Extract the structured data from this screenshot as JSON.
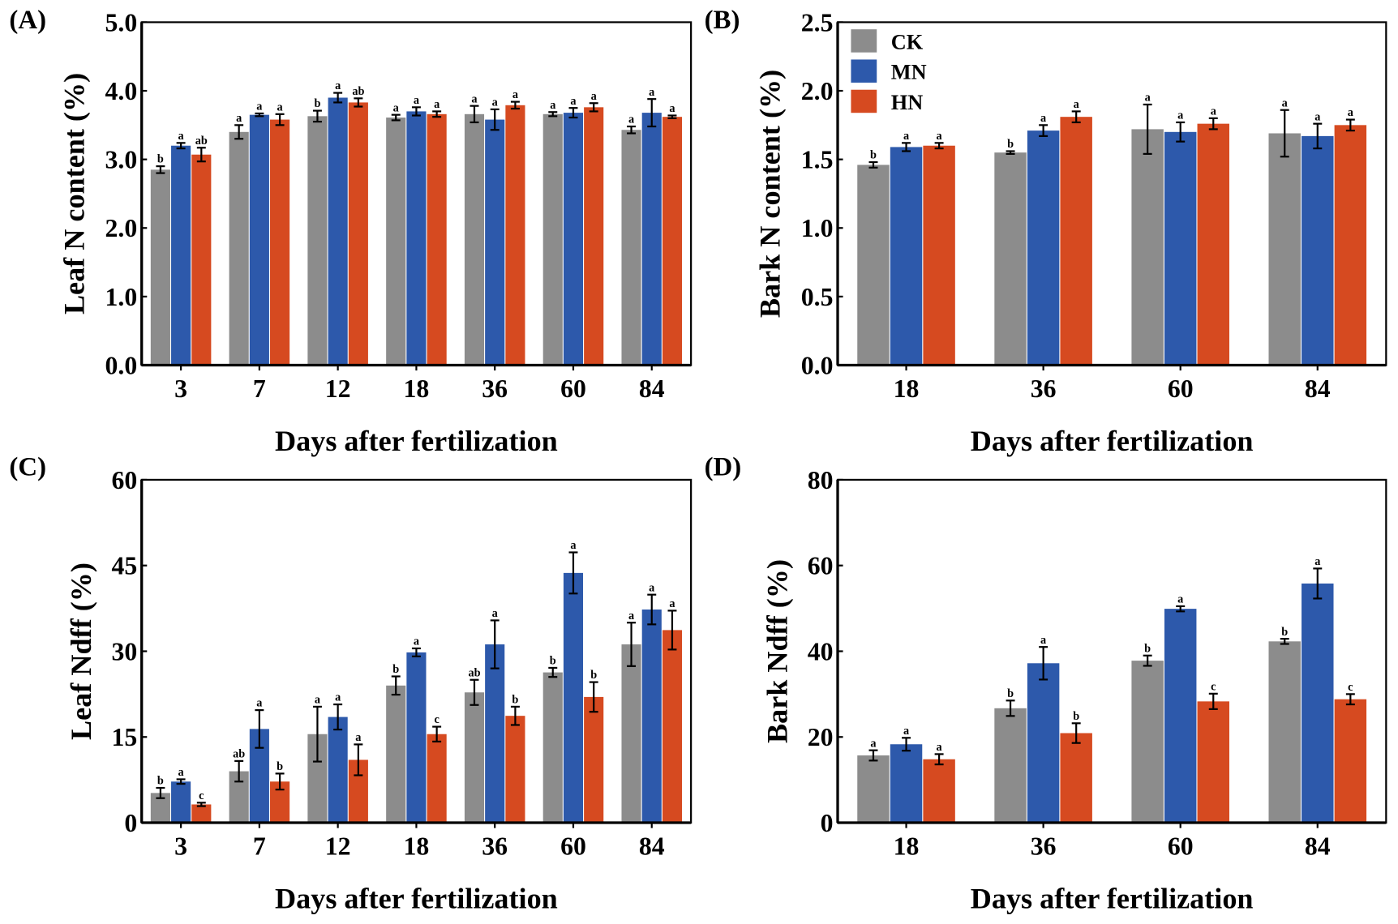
{
  "legend": [
    {
      "name": "CK",
      "color": "#8c8c8c"
    },
    {
      "name": "MN",
      "color": "#2d59ab"
    },
    {
      "name": "HN",
      "color": "#d64a20"
    }
  ],
  "chart_data": [
    {
      "panel": "(A)",
      "type": "bar",
      "ylabel": "Leaf N content (%)",
      "xlabel": "Days after fertilization",
      "categories": [
        "3",
        "7",
        "12",
        "18",
        "36",
        "60",
        "84"
      ],
      "ylim": [
        0,
        5
      ],
      "yticks": [
        "0.0",
        "1.0",
        "2.0",
        "3.0",
        "4.0",
        "5.0"
      ],
      "ystep": 1,
      "series": [
        {
          "name": "CK",
          "values": [
            2.85,
            3.4,
            3.63,
            3.61,
            3.66,
            3.66,
            3.43
          ],
          "errors": [
            0.05,
            0.1,
            0.08,
            0.04,
            0.12,
            0.03,
            0.05
          ],
          "letters": [
            "b",
            "a",
            "b",
            "a",
            "a",
            "a",
            "a"
          ]
        },
        {
          "name": "MN",
          "values": [
            3.2,
            3.65,
            3.9,
            3.7,
            3.58,
            3.68,
            3.68
          ],
          "errors": [
            0.04,
            0.02,
            0.07,
            0.06,
            0.15,
            0.07,
            0.2
          ],
          "letters": [
            "a",
            "a",
            "a",
            "a",
            "a",
            "a",
            "a"
          ]
        },
        {
          "name": "HN",
          "values": [
            3.07,
            3.58,
            3.83,
            3.66,
            3.79,
            3.76,
            3.62
          ],
          "errors": [
            0.1,
            0.08,
            0.06,
            0.04,
            0.05,
            0.06,
            0.02
          ],
          "letters": [
            "ab",
            "a",
            "ab",
            "a",
            "a",
            "a",
            "a"
          ]
        }
      ]
    },
    {
      "panel": "(B)",
      "type": "bar",
      "ylabel": "Bark N content (%)",
      "xlabel": "Days after fertilization",
      "categories": [
        "18",
        "36",
        "60",
        "84"
      ],
      "ylim": [
        0,
        2.5
      ],
      "yticks": [
        "0.0",
        "0.5",
        "1.0",
        "1.5",
        "2.0",
        "2.5"
      ],
      "ystep": 0.5,
      "legend_position": "top-left",
      "series": [
        {
          "name": "CK",
          "values": [
            1.46,
            1.55,
            1.72,
            1.69
          ],
          "errors": [
            0.02,
            0.01,
            0.18,
            0.17
          ],
          "letters": [
            "b",
            "b",
            "a",
            "a"
          ]
        },
        {
          "name": "MN",
          "values": [
            1.59,
            1.71,
            1.7,
            1.67
          ],
          "errors": [
            0.03,
            0.04,
            0.07,
            0.09
          ],
          "letters": [
            "a",
            "a",
            "a",
            "a"
          ]
        },
        {
          "name": "HN",
          "values": [
            1.6,
            1.81,
            1.76,
            1.75
          ],
          "errors": [
            0.02,
            0.04,
            0.04,
            0.04
          ],
          "letters": [
            "a",
            "a",
            "a",
            "a"
          ]
        }
      ]
    },
    {
      "panel": "(C)",
      "type": "bar",
      "ylabel": "Leaf Ndff (%)",
      "xlabel": "Days after fertilization",
      "categories": [
        "3",
        "7",
        "12",
        "18",
        "36",
        "60",
        "84"
      ],
      "ylim": [
        0,
        60
      ],
      "yticks": [
        "0",
        "15",
        "30",
        "45",
        "60"
      ],
      "ystep": 15,
      "series": [
        {
          "name": "CK",
          "values": [
            5.2,
            9.0,
            15.5,
            24.0,
            22.8,
            26.3,
            31.2
          ],
          "errors": [
            0.9,
            1.8,
            4.8,
            1.6,
            2.2,
            0.8,
            3.8
          ],
          "letters": [
            "b",
            "ab",
            "a",
            "b",
            "ab",
            "b",
            "a"
          ]
        },
        {
          "name": "MN",
          "values": [
            7.2,
            16.4,
            18.5,
            29.8,
            31.2,
            43.7,
            37.3
          ],
          "errors": [
            0.4,
            3.3,
            2.2,
            0.7,
            4.2,
            3.6,
            2.6
          ],
          "letters": [
            "a",
            "a",
            "a",
            "a",
            "a",
            "a",
            "a"
          ]
        },
        {
          "name": "HN",
          "values": [
            3.2,
            7.2,
            11.0,
            15.5,
            18.7,
            22.0,
            33.7
          ],
          "errors": [
            0.3,
            1.4,
            2.7,
            1.3,
            1.6,
            2.6,
            3.4
          ],
          "letters": [
            "c",
            "b",
            "a",
            "c",
            "b",
            "b",
            "a"
          ]
        }
      ]
    },
    {
      "panel": "(D)",
      "type": "bar",
      "ylabel": "Bark Ndff (%)",
      "xlabel": "Days after fertilization",
      "categories": [
        "18",
        "36",
        "60",
        "84"
      ],
      "ylim": [
        0,
        80
      ],
      "yticks": [
        "0",
        "20",
        "40",
        "60",
        "80"
      ],
      "ystep": 20,
      "series": [
        {
          "name": "CK",
          "values": [
            15.7,
            26.7,
            37.8,
            42.3
          ],
          "errors": [
            1.2,
            1.8,
            1.2,
            0.6
          ],
          "letters": [
            "a",
            "b",
            "b",
            "b"
          ]
        },
        {
          "name": "MN",
          "values": [
            18.3,
            37.2,
            49.9,
            55.8
          ],
          "errors": [
            1.5,
            3.8,
            0.6,
            3.5
          ],
          "letters": [
            "a",
            "a",
            "a",
            "a"
          ]
        },
        {
          "name": "HN",
          "values": [
            14.8,
            20.9,
            28.3,
            28.8
          ],
          "errors": [
            1.2,
            2.3,
            1.8,
            1.2
          ],
          "letters": [
            "a",
            "b",
            "c",
            "c"
          ]
        }
      ]
    }
  ]
}
